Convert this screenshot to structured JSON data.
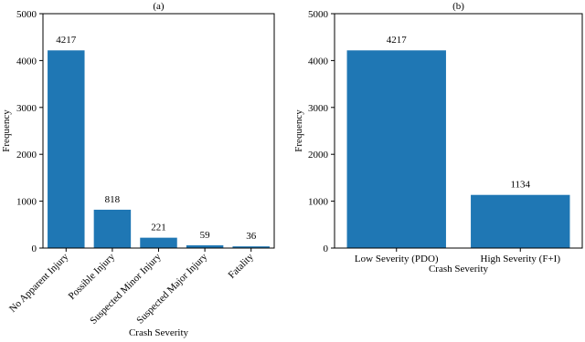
{
  "chart_data": [
    {
      "type": "bar",
      "title": "(a)",
      "xlabel": "Crash Severity",
      "ylabel": "Frequency",
      "categories": [
        "No Apparent Injury",
        "Possible Injury",
        "Suspected Minor Injury",
        "Suspected Major Injury",
        "Fatality"
      ],
      "values": [
        4217,
        818,
        221,
        59,
        36
      ],
      "color": "#1f77b4",
      "ylim": [
        0,
        5000
      ],
      "yticks": [
        0,
        1000,
        2000,
        3000,
        4000,
        5000
      ],
      "rotate_labels": true
    },
    {
      "type": "bar",
      "title": "(b)",
      "xlabel": "Crash Severity",
      "ylabel": "Frequency",
      "categories": [
        "Low Severity (PDO)",
        "High Severity (F+I)"
      ],
      "values": [
        4217,
        1134
      ],
      "color": "#1f77b4",
      "ylim": [
        0,
        5000
      ],
      "yticks": [
        0,
        1000,
        2000,
        3000,
        4000,
        5000
      ],
      "rotate_labels": false
    }
  ]
}
